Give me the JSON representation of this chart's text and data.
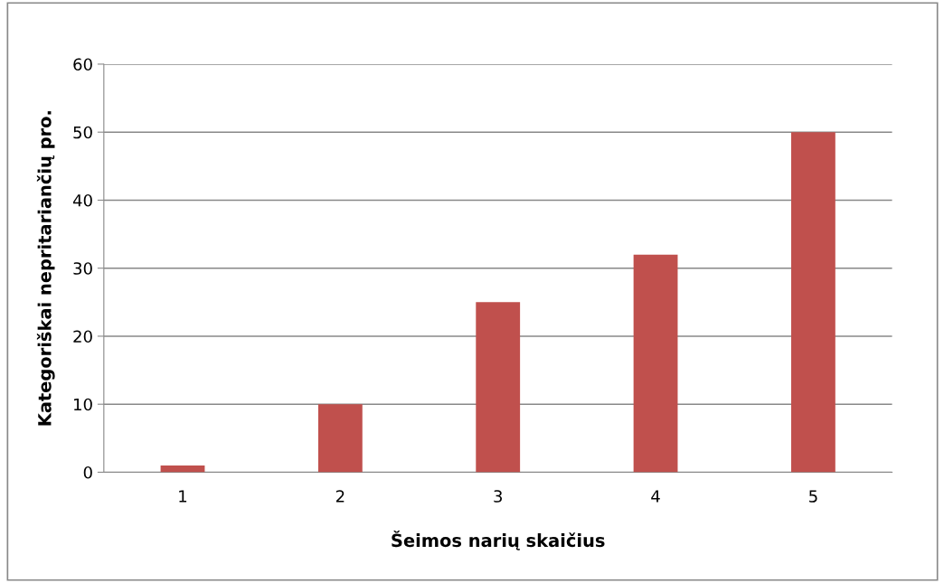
{
  "chart_data": {
    "type": "bar",
    "xlabel": "Šeimos narių skaičius",
    "ylabel": "Kategoriškai nepritariančių pro.",
    "categories": [
      "1",
      "2",
      "3",
      "4",
      "5"
    ],
    "values": [
      1,
      10,
      25,
      32,
      50
    ],
    "color": "#c0504d",
    "ylim": [
      0,
      60
    ],
    "yticks": [
      0,
      10,
      20,
      30,
      40,
      50,
      60
    ],
    "grid": "y",
    "legend": false
  }
}
